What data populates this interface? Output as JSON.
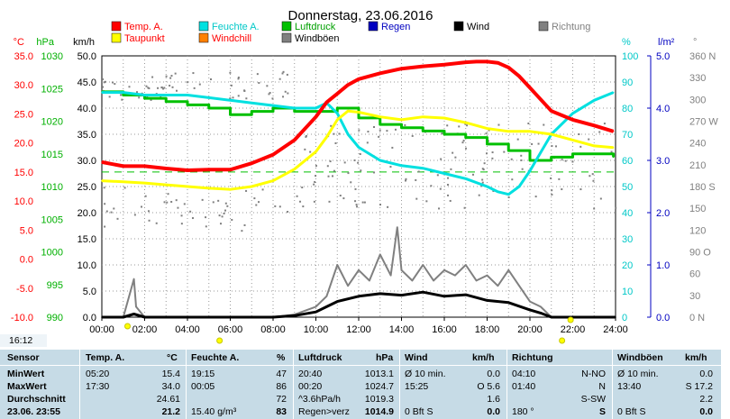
{
  "clock": "16:12",
  "chart_data": {
    "type": "line",
    "title": "Donnerstag, 23.06.2016",
    "x": {
      "ticks": [
        "00:00",
        "02:00",
        "04:00",
        "06:00",
        "08:00",
        "10:00",
        "12:00",
        "14:00",
        "16:00",
        "18:00",
        "20:00",
        "22:00",
        "24:00"
      ],
      "range_hours": [
        0,
        24
      ]
    },
    "left_axes": [
      {
        "unit": "°C",
        "color": "#ff0000",
        "ticks": [
          "35.0",
          "30.0",
          "25.0",
          "20.0",
          "15.0",
          "10.0",
          "5.0",
          "0.0",
          "-5.0",
          "-10.0"
        ],
        "range": [
          -10,
          35
        ]
      },
      {
        "unit": "hPa",
        "color": "#00b000",
        "ticks": [
          "1030",
          "1025",
          "1020",
          "1015",
          "1010",
          "1005",
          "1000",
          "995",
          "990"
        ],
        "range": [
          990,
          1030
        ]
      },
      {
        "unit": "km/h",
        "color": "#000000",
        "ticks": [
          "50.0",
          "45.0",
          "40.0",
          "35.0",
          "30.0",
          "25.0",
          "20.0",
          "15.0",
          "10.0",
          "5.0",
          "0.0"
        ],
        "range": [
          0,
          50
        ]
      }
    ],
    "right_axes": [
      {
        "unit": "%",
        "color": "#00c8c8",
        "ticks": [
          "100",
          "90",
          "80",
          "70",
          "60",
          "50",
          "40",
          "30",
          "20",
          "10",
          "0"
        ],
        "range": [
          0,
          100
        ]
      },
      {
        "unit": "l/m²",
        "color": "#0000c0",
        "ticks": [
          "5.0",
          "4.0",
          "3.0",
          "2.0",
          "1.0",
          "0.0"
        ],
        "range": [
          0,
          5
        ]
      },
      {
        "unit": "°",
        "color": "#808080",
        "ticks": [
          "360 N",
          "330",
          "300",
          "270 W",
          "240",
          "210",
          "180 S",
          "150",
          "120",
          "90 O",
          "60",
          "30",
          "0 N"
        ],
        "range": [
          0,
          360
        ]
      }
    ],
    "legend": [
      {
        "name": "Temp. A.",
        "color": "#ff0000"
      },
      {
        "name": "Feuchte A.",
        "color": "#00e0e0"
      },
      {
        "name": "Luftdruck",
        "color": "#00c000"
      },
      {
        "name": "Regen",
        "color": "#0000c0"
      },
      {
        "name": "Wind",
        "color": "#000000"
      },
      {
        "name": "Richtung",
        "color": "#808080"
      },
      {
        "name": "Taupunkt",
        "color": "#ffff00"
      },
      {
        "name": "Windchill",
        "color": "#ff8000"
      },
      {
        "name": "Windböen",
        "color": "#808080"
      }
    ],
    "series": [
      {
        "name": "Temp. A.",
        "unit": "°C",
        "x": [
          0,
          1,
          2,
          3,
          4,
          5,
          6,
          7,
          8,
          9,
          10,
          10.5,
          11,
          11.5,
          12,
          13,
          14,
          15,
          16,
          17,
          17.5,
          18,
          18.5,
          19,
          19.5,
          20,
          20.5,
          21,
          22,
          23,
          23.9
        ],
        "y": [
          16.7,
          16.0,
          16.0,
          15.6,
          15.3,
          15.4,
          15.4,
          16.5,
          18.0,
          20.5,
          24.5,
          27.0,
          28.5,
          30.0,
          31.0,
          32.0,
          32.8,
          33.2,
          33.5,
          33.9,
          34.0,
          34.0,
          33.8,
          33.0,
          31.5,
          29.5,
          27.5,
          25.5,
          24.0,
          23.0,
          22.0
        ]
      },
      {
        "name": "Taupunkt",
        "unit": "°C",
        "x": [
          0,
          1,
          2,
          3,
          4,
          5,
          6,
          7,
          8,
          9,
          10,
          10.5,
          11,
          11.5,
          12,
          13,
          14,
          15,
          16,
          17,
          18,
          19,
          20,
          21,
          22,
          23,
          23.9
        ],
        "y": [
          13.5,
          13.3,
          13.1,
          12.8,
          12.5,
          12.2,
          12.0,
          12.5,
          13.5,
          15.5,
          18.5,
          21.0,
          24.0,
          25.5,
          25.3,
          24.5,
          24.0,
          24.5,
          24.3,
          23.5,
          22.5,
          22.0,
          22.0,
          21.5,
          20.5,
          19.5,
          19.2
        ]
      },
      {
        "name": "Feuchte A.",
        "unit": "%",
        "x": [
          0,
          1,
          2,
          3,
          4,
          5,
          6,
          7,
          8,
          9,
          10,
          10.5,
          11,
          11.5,
          12,
          13,
          14,
          15,
          16,
          17,
          18,
          18.5,
          19,
          19.5,
          20,
          20.5,
          21,
          22,
          23,
          23.9
        ],
        "y": [
          86,
          86,
          85,
          85,
          85,
          84,
          83,
          82,
          81,
          80,
          80,
          82,
          78,
          70,
          65,
          60,
          58,
          57,
          55,
          53,
          50,
          48,
          47,
          50,
          56,
          63,
          70,
          78,
          83,
          86
        ]
      },
      {
        "name": "Luftdruck",
        "unit": "hPa",
        "x": [
          0,
          1,
          2,
          3,
          4,
          5,
          6,
          7,
          8,
          9,
          10,
          11,
          12,
          13,
          14,
          15,
          16,
          17,
          18,
          19,
          20,
          21,
          22,
          23,
          23.9
        ],
        "y": [
          1024.5,
          1024.0,
          1023.5,
          1023.0,
          1022.5,
          1022.0,
          1021.0,
          1021.5,
          1022.0,
          1021.5,
          1021.5,
          1022.0,
          1020.5,
          1019.5,
          1019.0,
          1018.5,
          1018.0,
          1017.5,
          1016.5,
          1015.5,
          1014.0,
          1014.5,
          1015.0,
          1015.0,
          1014.5
        ]
      },
      {
        "name": "Wind",
        "unit": "km/h",
        "x": [
          0,
          1,
          1.5,
          2,
          3,
          4,
          5,
          6,
          7,
          8,
          9,
          10,
          10.5,
          11,
          12,
          13,
          14,
          15,
          16,
          17,
          18,
          19,
          20,
          20.5,
          21,
          22,
          23,
          24
        ],
        "y": [
          0,
          0,
          0.6,
          0,
          0,
          0,
          0,
          0,
          0,
          0,
          0.3,
          1.0,
          2.0,
          3.0,
          4.0,
          4.5,
          4.2,
          4.8,
          4.0,
          4.3,
          3.2,
          2.8,
          1.4,
          0.8,
          0,
          0,
          0,
          0
        ]
      },
      {
        "name": "Windböen",
        "unit": "km/h",
        "x": [
          0,
          1,
          1.5,
          1.6,
          2,
          4,
          6,
          8,
          9,
          10,
          10.5,
          11,
          11.5,
          12,
          12.5,
          13,
          13.5,
          13.8,
          14,
          14.5,
          15,
          15.5,
          16,
          16.5,
          17,
          17.5,
          18,
          18.5,
          19,
          19.5,
          20,
          20.5,
          21,
          22,
          24
        ],
        "y": [
          0,
          0,
          7.3,
          2,
          0,
          0,
          0,
          0,
          0.5,
          2,
          4,
          10,
          6,
          9,
          7,
          12,
          8,
          17.2,
          9,
          7,
          10,
          7,
          9,
          8,
          10,
          7,
          8,
          6,
          9,
          6,
          3,
          2,
          0,
          0,
          0
        ]
      }
    ],
    "dashed_reference": {
      "unit": "°C",
      "value": 15.0
    },
    "grid": true
  },
  "stats": {
    "header": {
      "sensor": "Sensor",
      "temp": "Temp. A.",
      "temp_unit": "°C",
      "feuchte": "Feuchte A.",
      "feuchte_unit": "%",
      "luftdruck": "Luftdruck",
      "luftdruck_unit": "hPa",
      "wind": "Wind",
      "wind_unit": "km/h",
      "richtung": "Richtung",
      "windboeen": "Windböen",
      "windboeen_unit": "km/h"
    },
    "rows": [
      {
        "label": "MinWert",
        "temp_time": "05:20",
        "temp_val": "15.4",
        "feuchte_time": "19:15",
        "feuchte_val": "47",
        "luft_time": "20:40",
        "luft_val": "1013.1",
        "wind_time": "Ø 10 min.",
        "wind_val": "0.0",
        "richt_time": "04:10",
        "richt_val": "N-NO",
        "boeen_time": "Ø 10 min.",
        "boeen_val": "0.0"
      },
      {
        "label": "MaxWert",
        "temp_time": "17:30",
        "temp_val": "34.0",
        "feuchte_time": "00:05",
        "feuchte_val": "86",
        "luft_time": "00:20",
        "luft_val": "1024.7",
        "wind_time": "15:25",
        "wind_val": "O 5.6",
        "richt_time": "01:40",
        "richt_val": "N",
        "boeen_time": "13:40",
        "boeen_val": "S 17.2"
      },
      {
        "label": "Durchschnitt",
        "temp_time": "",
        "temp_val": "24.61",
        "feuchte_time": "",
        "feuchte_val": "72",
        "luft_time": "^3.6hPa/h",
        "luft_val": "1019.3",
        "wind_time": "",
        "wind_val": "1.6",
        "richt_time": "",
        "richt_val": "S-SW",
        "boeen_time": "",
        "boeen_val": "2.2"
      },
      {
        "label": "23.06. 23:55",
        "temp_time": "",
        "temp_val": "21.2",
        "feuchte_time": "15.40 g/m³",
        "feuchte_val": "83",
        "luft_time": "Regen>verz",
        "luft_val": "1014.9",
        "wind_time": "0 Bft S",
        "wind_val": "0.0",
        "richt_time": "180 °",
        "richt_val": "S",
        "boeen_time": "0 Bft S",
        "boeen_val": "0.0"
      }
    ]
  }
}
